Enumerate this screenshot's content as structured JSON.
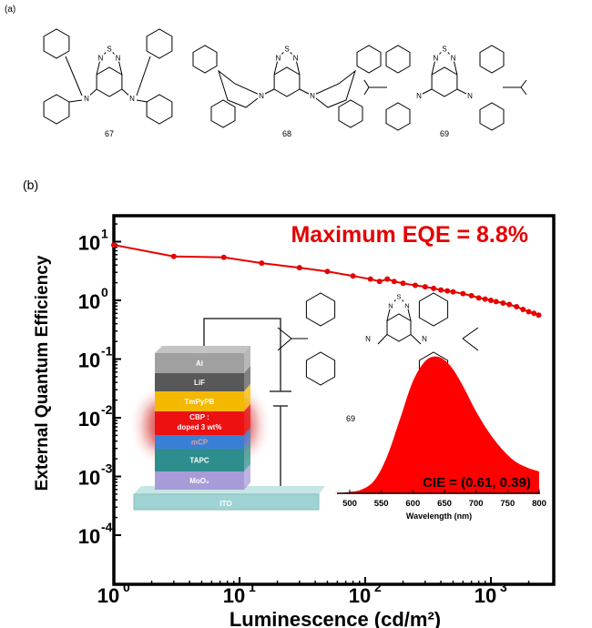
{
  "panel_labels": {
    "a": "(a)",
    "b": "(b)"
  },
  "molecules": [
    {
      "label": "67"
    },
    {
      "label": "68"
    },
    {
      "label": "69"
    }
  ],
  "atom_labels": {
    "S": "S",
    "N": "N"
  },
  "inset_molecule_label": "69",
  "annotation": "Maximum EQE = 8.8%",
  "cie": "CIE = (0.61, 0.39)",
  "device_layers": [
    "Al",
    "LiF",
    "TmPyPB",
    "CBP :",
    "doped 3 wt%",
    "mCP",
    "TAPC",
    "MoO₃",
    "ITO"
  ],
  "colors": {
    "series": "#e60000",
    "spectrum": "#ff0000"
  },
  "chart_data": [
    {
      "type": "line",
      "title": "",
      "xlabel": "Luminescence (cd/m²)",
      "ylabel": "External Quantum Efficiency",
      "xscale": "log",
      "yscale": "log",
      "xlim": [
        1,
        2400
      ],
      "ylim": [
        0.0001,
        20
      ],
      "xticks": [
        {
          "v": 1,
          "label": "10",
          "exp": "0"
        },
        {
          "v": 10,
          "label": "10",
          "exp": "1"
        },
        {
          "v": 100,
          "label": "10",
          "exp": "2"
        },
        {
          "v": 1000,
          "label": "10",
          "exp": "3"
        }
      ],
      "yticks": [
        {
          "v": 10,
          "label": "10",
          "exp": "1"
        },
        {
          "v": 1,
          "label": "10",
          "exp": "0"
        },
        {
          "v": 0.1,
          "label": "10",
          "exp": "-1"
        },
        {
          "v": 0.01,
          "label": "10",
          "exp": "-2"
        },
        {
          "v": 0.001,
          "label": "10",
          "exp": "-3"
        },
        {
          "v": 0.0001,
          "label": "10",
          "exp": "-4"
        }
      ],
      "series": [
        {
          "name": "EQE",
          "points": [
            [
              1,
              8.8
            ],
            [
              3,
              5.6
            ],
            [
              7.5,
              5.4
            ],
            [
              15,
              4.3
            ],
            [
              30,
              3.6
            ],
            [
              50,
              3.1
            ],
            [
              80,
              2.6
            ],
            [
              110,
              2.3
            ],
            [
              130,
              2.1
            ],
            [
              150,
              2.3
            ],
            [
              170,
              2.1
            ],
            [
              200,
              1.95
            ],
            [
              250,
              1.8
            ],
            [
              300,
              1.7
            ],
            [
              350,
              1.6
            ],
            [
              400,
              1.5
            ],
            [
              450,
              1.45
            ],
            [
              500,
              1.4
            ],
            [
              600,
              1.3
            ],
            [
              700,
              1.2
            ],
            [
              800,
              1.1
            ],
            [
              900,
              1.05
            ],
            [
              1000,
              1.0
            ],
            [
              1100,
              0.95
            ],
            [
              1250,
              0.9
            ],
            [
              1400,
              0.85
            ],
            [
              1600,
              0.78
            ],
            [
              1800,
              0.7
            ],
            [
              2000,
              0.64
            ],
            [
              2200,
              0.6
            ],
            [
              2400,
              0.56
            ]
          ]
        }
      ]
    },
    {
      "type": "area",
      "title": "",
      "xlabel": "Wavelength (nm)",
      "ylabel": "",
      "xlim": [
        475,
        800
      ],
      "xticks": [
        500,
        550,
        600,
        650,
        700,
        750,
        800
      ],
      "series": [
        {
          "name": "EL spectrum",
          "x": [
            475,
            500,
            520,
            540,
            560,
            580,
            600,
            620,
            640,
            660,
            680,
            700,
            720,
            740,
            760,
            780,
            800
          ],
          "y": [
            0,
            0.01,
            0.03,
            0.1,
            0.28,
            0.55,
            0.82,
            0.97,
            1.0,
            0.93,
            0.78,
            0.6,
            0.45,
            0.33,
            0.24,
            0.19,
            0.16
          ]
        }
      ]
    }
  ]
}
